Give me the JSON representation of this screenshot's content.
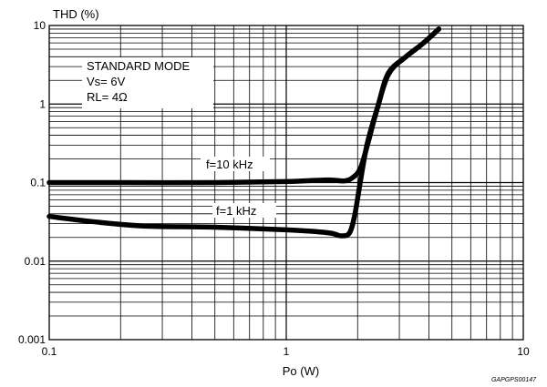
{
  "chart_data": {
    "type": "line",
    "ylabel": "THD (%)",
    "xlabel": "Po (W)",
    "x_scale": "log",
    "y_scale": "log",
    "xlim": [
      0.1,
      10
    ],
    "ylim": [
      0.001,
      10
    ],
    "grid": true,
    "x_ticks": [
      {
        "value": 0.1,
        "label": "0.1"
      },
      {
        "value": 1,
        "label": "1"
      },
      {
        "value": 10,
        "label": "10"
      }
    ],
    "y_ticks": [
      {
        "value": 10,
        "label": "10"
      },
      {
        "value": 1,
        "label": "1"
      },
      {
        "value": 0.1,
        "label": "0.1"
      },
      {
        "value": 0.01,
        "label": "0.01"
      },
      {
        "value": 0.001,
        "label": "0.001"
      }
    ],
    "conditions": [
      "STANDARD MODE",
      "Vs= 6V",
      "RL= 4Ω"
    ],
    "series": [
      {
        "name": "f=10 kHz",
        "x": [
          0.1,
          0.2,
          0.5,
          1.0,
          1.5,
          1.75,
          1.9,
          2.05,
          2.2,
          2.4,
          2.7,
          3.2,
          3.8,
          4.4
        ],
        "y": [
          0.1,
          0.1,
          0.1,
          0.103,
          0.108,
          0.105,
          0.115,
          0.15,
          0.3,
          0.8,
          2.4,
          4.0,
          6.0,
          9.0
        ]
      },
      {
        "name": "f=1 kHz",
        "x": [
          0.1,
          0.15,
          0.25,
          0.5,
          1.0,
          1.5,
          1.7,
          1.85,
          1.95,
          2.05,
          2.2,
          2.45,
          2.7,
          3.2,
          3.8,
          4.4
        ],
        "y": [
          0.037,
          0.032,
          0.028,
          0.027,
          0.025,
          0.023,
          0.021,
          0.023,
          0.04,
          0.1,
          0.32,
          1.0,
          2.5,
          4.0,
          6.0,
          9.0
        ]
      }
    ],
    "figure_code": "GAPGPS00147"
  }
}
